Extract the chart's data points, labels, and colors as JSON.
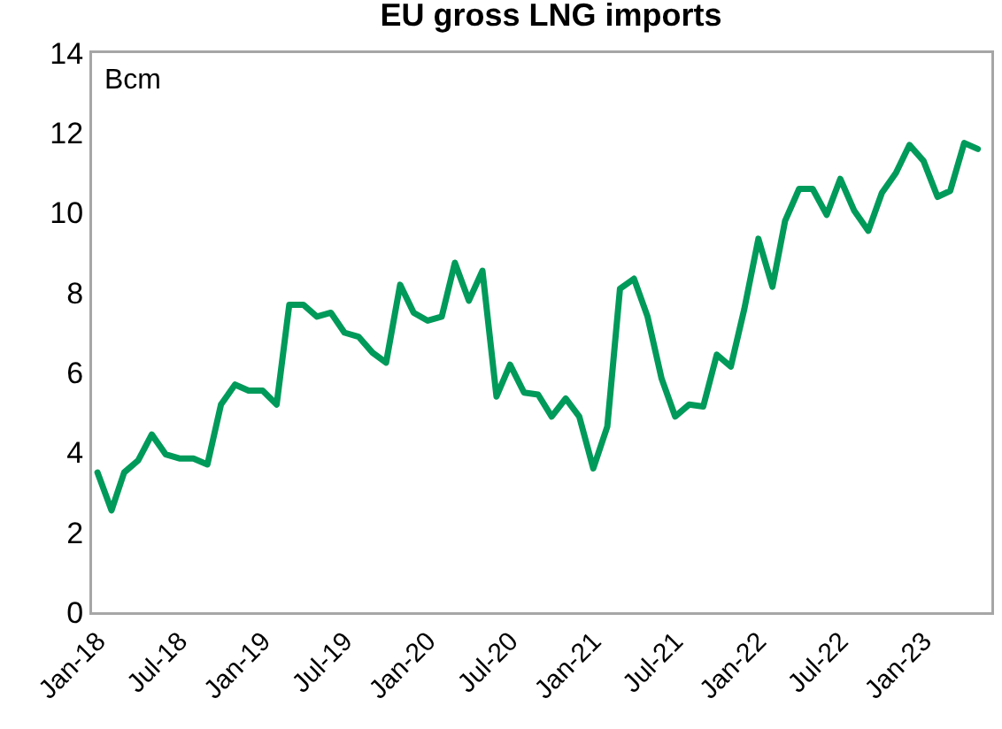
{
  "chart_data": {
    "type": "line",
    "title": "EU gross LNG imports",
    "annotations": [
      "Bcm"
    ],
    "x": [
      "2018-01",
      "2018-02",
      "2018-03",
      "2018-04",
      "2018-05",
      "2018-06",
      "2018-07",
      "2018-08",
      "2018-09",
      "2018-10",
      "2018-11",
      "2018-12",
      "2019-01",
      "2019-02",
      "2019-03",
      "2019-04",
      "2019-05",
      "2019-06",
      "2019-07",
      "2019-08",
      "2019-09",
      "2019-10",
      "2019-11",
      "2019-12",
      "2020-01",
      "2020-02",
      "2020-03",
      "2020-04",
      "2020-05",
      "2020-06",
      "2020-07",
      "2020-08",
      "2020-09",
      "2020-10",
      "2020-11",
      "2020-12",
      "2021-01",
      "2021-02",
      "2021-03",
      "2021-04",
      "2021-05",
      "2021-06",
      "2021-07",
      "2021-08",
      "2021-09",
      "2021-10",
      "2021-11",
      "2021-12",
      "2022-01",
      "2022-02",
      "2022-03",
      "2022-04",
      "2022-05",
      "2022-06",
      "2022-07",
      "2022-08",
      "2022-09",
      "2022-10",
      "2022-11",
      "2022-12",
      "2023-01",
      "2023-02",
      "2023-03",
      "2023-04",
      "2023-05"
    ],
    "series": [
      {
        "color": "#009a5a",
        "values": [
          3.5,
          2.55,
          3.5,
          3.8,
          4.45,
          3.95,
          3.85,
          3.85,
          3.7,
          5.2,
          5.7,
          5.55,
          5.55,
          5.2,
          7.7,
          7.7,
          7.4,
          7.5,
          7.0,
          6.9,
          6.5,
          6.25,
          8.2,
          7.5,
          7.3,
          7.4,
          8.75,
          7.8,
          8.55,
          5.4,
          6.2,
          5.5,
          5.45,
          4.9,
          5.35,
          4.9,
          3.6,
          4.65,
          8.1,
          8.35,
          7.4,
          5.85,
          4.9,
          5.2,
          5.15,
          6.45,
          6.15,
          7.6,
          9.35,
          8.15,
          9.8,
          10.6,
          10.6,
          9.95,
          10.85,
          10.05,
          9.55,
          10.5,
          11.0,
          11.7,
          11.3,
          10.4,
          10.55,
          11.75,
          11.6
        ]
      }
    ],
    "xlim": [
      "2017-12-20",
      "2023-05-31"
    ],
    "xticks": [
      {
        "value": "2018-01",
        "label": "Jan-18"
      },
      {
        "value": "2018-07",
        "label": "Jul-18"
      },
      {
        "value": "2019-01",
        "label": "Jan-19"
      },
      {
        "value": "2019-07",
        "label": "Jul-19"
      },
      {
        "value": "2020-01",
        "label": "Jan-20"
      },
      {
        "value": "2020-07",
        "label": "Jul-20"
      },
      {
        "value": "2021-01",
        "label": "Jan-21"
      },
      {
        "value": "2021-07",
        "label": "Jul-21"
      },
      {
        "value": "2022-01",
        "label": "Jan-22"
      },
      {
        "value": "2022-07",
        "label": "Jul-22"
      },
      {
        "value": "2023-01",
        "label": "Jan-23"
      }
    ],
    "ylim": [
      0,
      14
    ],
    "yticks": [
      0,
      2,
      4,
      6,
      8,
      10,
      12,
      14
    ],
    "grid": false,
    "marker": "none",
    "line_style": "solid"
  }
}
